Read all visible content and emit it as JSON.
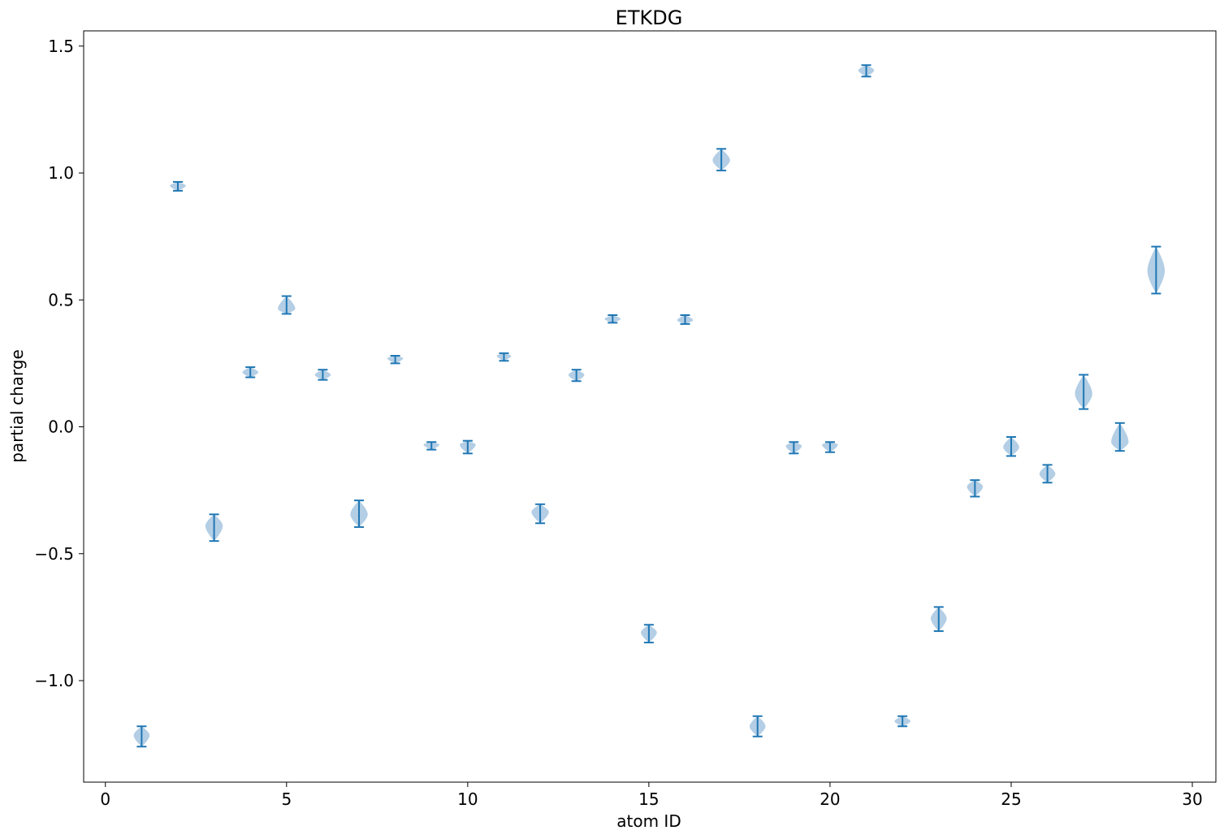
{
  "chart_data": {
    "type": "violin",
    "title": "ETKDG",
    "xlabel": "atom ID",
    "ylabel": "partial charge",
    "xlim": [
      -0.6,
      30.65
    ],
    "ylim": [
      -1.4,
      1.56
    ],
    "xticks": [
      0,
      5,
      10,
      15,
      20,
      25,
      30
    ],
    "xtick_labels": [
      "0",
      "5",
      "10",
      "15",
      "20",
      "25",
      "30"
    ],
    "yticks": [
      -1.0,
      -0.5,
      0.0,
      0.5,
      1.0,
      1.5
    ],
    "ytick_labels": [
      "−1.0",
      "−0.5",
      "0.0",
      "0.5",
      "1.0",
      "1.5"
    ],
    "grid": false,
    "colors": {
      "body": "#a6c5e0",
      "line": "#1f77b4"
    },
    "violins": [
      {
        "x": 1,
        "min": -1.26,
        "max": -1.18,
        "center": -1.215,
        "half_width": 0.22
      },
      {
        "x": 2,
        "min": 0.93,
        "max": 0.965,
        "center": 0.95,
        "half_width": 0.22
      },
      {
        "x": 3,
        "min": -0.45,
        "max": -0.345,
        "center": -0.39,
        "half_width": 0.24
      },
      {
        "x": 4,
        "min": 0.195,
        "max": 0.235,
        "center": 0.215,
        "half_width": 0.22
      },
      {
        "x": 5,
        "min": 0.445,
        "max": 0.515,
        "center": 0.465,
        "half_width": 0.24
      },
      {
        "x": 6,
        "min": 0.185,
        "max": 0.225,
        "center": 0.205,
        "half_width": 0.22
      },
      {
        "x": 7,
        "min": -0.395,
        "max": -0.29,
        "center": -0.345,
        "half_width": 0.24
      },
      {
        "x": 8,
        "min": 0.25,
        "max": 0.28,
        "center": 0.27,
        "half_width": 0.22
      },
      {
        "x": 9,
        "min": -0.09,
        "max": -0.06,
        "center": -0.07,
        "half_width": 0.22
      },
      {
        "x": 10,
        "min": -0.105,
        "max": -0.055,
        "center": -0.07,
        "half_width": 0.22
      },
      {
        "x": 11,
        "min": 0.26,
        "max": 0.29,
        "center": 0.28,
        "half_width": 0.2
      },
      {
        "x": 12,
        "min": -0.38,
        "max": -0.305,
        "center": -0.335,
        "half_width": 0.24
      },
      {
        "x": 13,
        "min": 0.18,
        "max": 0.225,
        "center": 0.205,
        "half_width": 0.22
      },
      {
        "x": 14,
        "min": 0.41,
        "max": 0.44,
        "center": 0.425,
        "half_width": 0.22
      },
      {
        "x": 15,
        "min": -0.85,
        "max": -0.78,
        "center": -0.81,
        "half_width": 0.22
      },
      {
        "x": 16,
        "min": 0.405,
        "max": 0.44,
        "center": 0.42,
        "half_width": 0.22
      },
      {
        "x": 17,
        "min": 1.01,
        "max": 1.095,
        "center": 1.05,
        "half_width": 0.24
      },
      {
        "x": 18,
        "min": -1.22,
        "max": -1.14,
        "center": -1.18,
        "half_width": 0.22
      },
      {
        "x": 19,
        "min": -0.105,
        "max": -0.06,
        "center": -0.075,
        "half_width": 0.22
      },
      {
        "x": 20,
        "min": -0.1,
        "max": -0.06,
        "center": -0.07,
        "half_width": 0.22
      },
      {
        "x": 21,
        "min": 1.38,
        "max": 1.425,
        "center": 1.405,
        "half_width": 0.22
      },
      {
        "x": 22,
        "min": -1.18,
        "max": -1.14,
        "center": -1.16,
        "half_width": 0.22
      },
      {
        "x": 23,
        "min": -0.805,
        "max": -0.71,
        "center": -0.755,
        "half_width": 0.22
      },
      {
        "x": 24,
        "min": -0.275,
        "max": -0.21,
        "center": -0.235,
        "half_width": 0.22
      },
      {
        "x": 25,
        "min": -0.115,
        "max": -0.04,
        "center": -0.08,
        "half_width": 0.22
      },
      {
        "x": 26,
        "min": -0.22,
        "max": -0.15,
        "center": -0.185,
        "half_width": 0.22
      },
      {
        "x": 27,
        "min": 0.07,
        "max": 0.205,
        "center": 0.13,
        "half_width": 0.24
      },
      {
        "x": 28,
        "min": -0.095,
        "max": 0.015,
        "center": -0.06,
        "half_width": 0.24
      },
      {
        "x": 29,
        "min": 0.525,
        "max": 0.71,
        "center": 0.615,
        "half_width": 0.24
      }
    ]
  }
}
